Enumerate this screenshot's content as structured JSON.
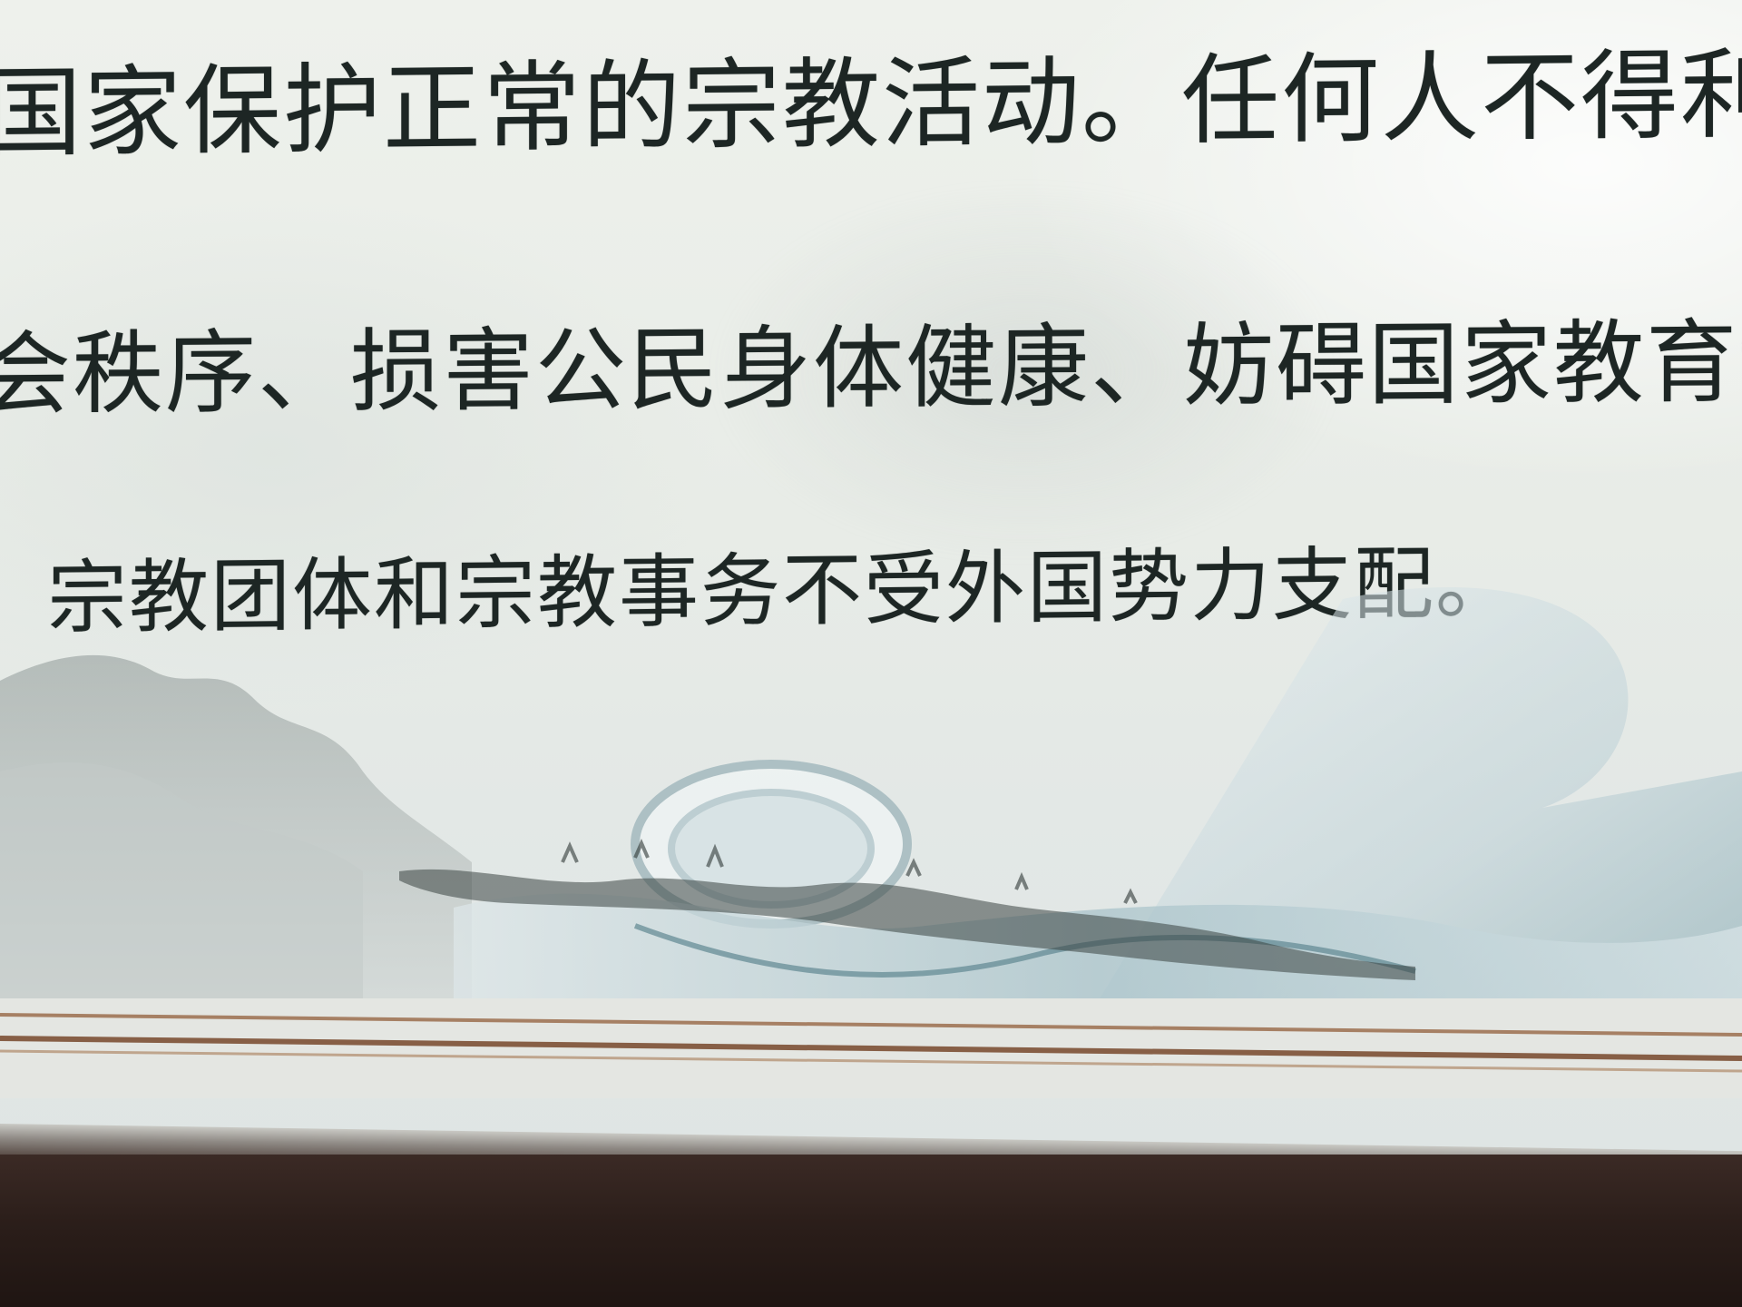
{
  "poster": {
    "line_1": "国家保护正常的宗教活动。任何人不得利",
    "line_2": "会秩序、损害公民身体健康、妨碍国家教育制",
    "line_3": "宗教团体和宗教事务不受外国势力支配。"
  },
  "colors": {
    "text": "#1d2624",
    "poster_background": "#e8ece7",
    "scroll_teal": "#6f9aa6",
    "stripe_brown": "#8a5a3c",
    "frame": "#2b1e1a"
  }
}
